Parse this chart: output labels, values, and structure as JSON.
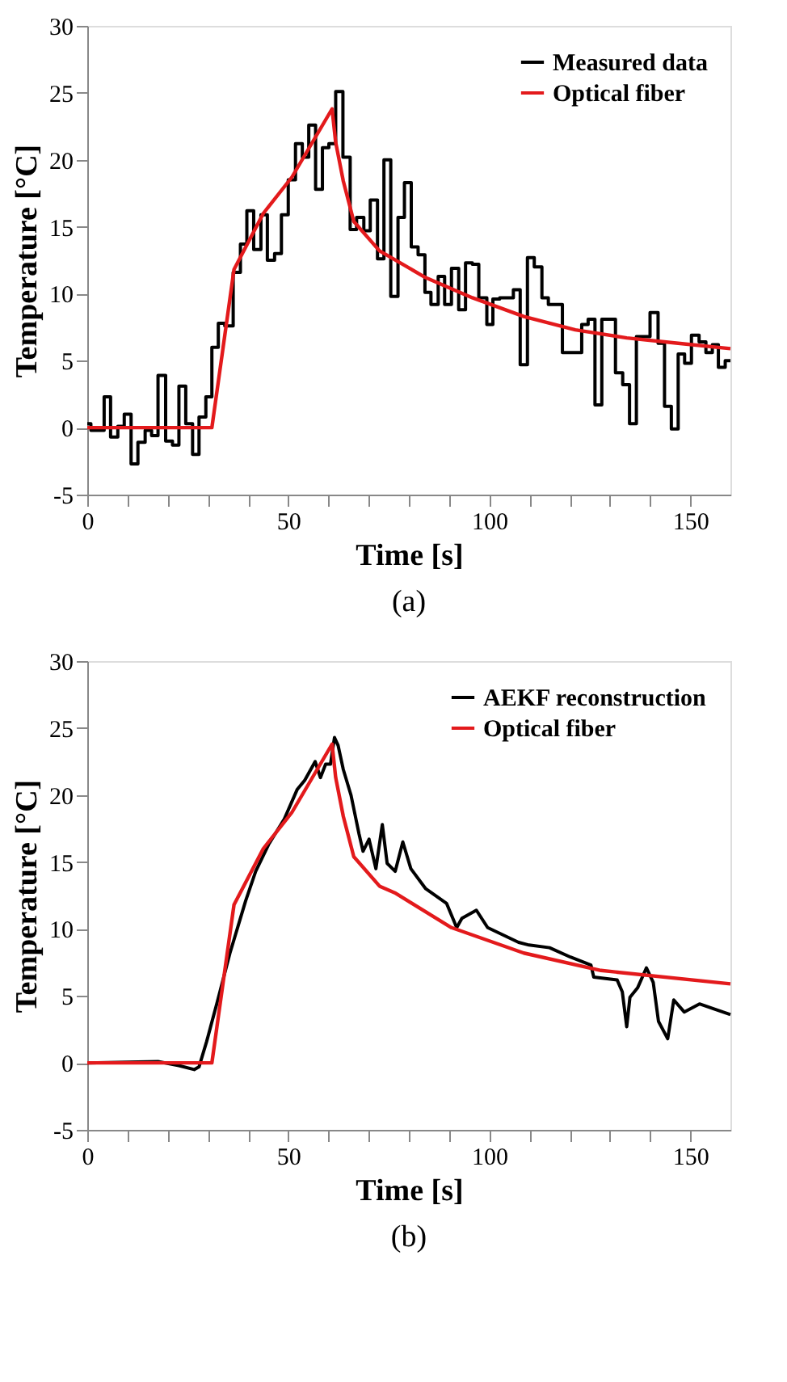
{
  "chart_data": [
    {
      "type": "line",
      "xlabel": "Time [s]",
      "ylabel": "Temperature [°C]",
      "annotations": [
        "(a)"
      ],
      "legend": "top right",
      "grid": false,
      "line_style": "solid",
      "marker": "none",
      "xlim": [
        0,
        160
      ],
      "ylim": [
        -5,
        30
      ],
      "xticks": [
        0,
        {
          "value": 10,
          "label": null
        },
        {
          "value": 20,
          "label": null
        },
        {
          "value": 30,
          "label": null
        },
        {
          "value": 40,
          "label": null
        },
        50,
        {
          "value": 60,
          "label": null
        },
        {
          "value": 70,
          "label": null
        },
        {
          "value": 80,
          "label": null
        },
        {
          "value": 90,
          "label": null
        },
        100,
        {
          "value": 110,
          "label": null
        },
        {
          "value": 120,
          "label": null
        },
        {
          "value": 130,
          "label": null
        },
        {
          "value": 140,
          "label": null
        },
        150
      ],
      "yticks": [
        -5,
        0,
        5,
        10,
        15,
        20,
        25,
        30
      ],
      "series": [
        {
          "name": "Measured data",
          "type": "step",
          "color": "#000000",
          "x": [
            0.0,
            0.9,
            4.2,
            5.8,
            7.6,
            9.2,
            10.9,
            12.6,
            14.4,
            16.0,
            17.6,
            19.5,
            21.2,
            22.8,
            24.5,
            26.2,
            27.8,
            29.5,
            31.0,
            32.6,
            34.2,
            36.3,
            38.1,
            39.7,
            41.4,
            43.2,
            44.8,
            46.6,
            48.3,
            50.0,
            51.8,
            53.5,
            55.1,
            56.8,
            58.5,
            60.1,
            61.8,
            63.6,
            65.4,
            67.0,
            68.8,
            70.4,
            72.2,
            73.8,
            75.5,
            77.3,
            78.9,
            80.6,
            82.3,
            84.0,
            85.5,
            87.3,
            88.9,
            90.6,
            92.4,
            94.1,
            95.8,
            97.4,
            99.4,
            100.9,
            102.6,
            106.0,
            107.7,
            109.5,
            111.2,
            113.1,
            114.7,
            118.2,
            123.0,
            124.6,
            126.3,
            128.0,
            131.4,
            133.2,
            134.9,
            136.6,
            140.0,
            142.0,
            143.6,
            145.3,
            147.0,
            148.6,
            150.3,
            152.2,
            153.9,
            155.5,
            157.0,
            158.7,
            160.0
          ],
          "values": [
            0.3,
            -0.2,
            2.3,
            -0.7,
            0.1,
            1.0,
            -2.7,
            -1.1,
            -0.2,
            -0.6,
            3.9,
            -1.0,
            -1.3,
            3.1,
            0.3,
            -2.0,
            0.8,
            2.3,
            6.0,
            7.8,
            7.6,
            11.6,
            13.7,
            16.2,
            13.3,
            15.9,
            12.5,
            13.0,
            15.9,
            18.5,
            21.2,
            20.2,
            22.6,
            17.8,
            20.9,
            21.2,
            25.1,
            20.2,
            14.8,
            15.7,
            14.7,
            17.0,
            12.6,
            20.0,
            9.8,
            15.7,
            18.3,
            13.5,
            12.9,
            10.1,
            9.2,
            11.3,
            9.2,
            11.9,
            8.8,
            12.3,
            12.2,
            9.7,
            7.7,
            9.6,
            9.7,
            10.3,
            4.7,
            12.7,
            12.0,
            9.7,
            9.2,
            5.6,
            7.7,
            8.1,
            1.7,
            8.1,
            4.1,
            3.2,
            0.3,
            6.8,
            8.6,
            6.3,
            1.6,
            -0.1,
            5.5,
            4.8,
            6.9,
            6.4,
            5.6,
            6.2,
            4.5,
            5.0,
            5.0
          ]
        },
        {
          "name": "Optical fiber",
          "type": "line",
          "color": "#e31a1c",
          "x": [
            0,
            31.0,
            36.5,
            43.8,
            50.9,
            60.9,
            61.8,
            63.7,
            66.3,
            72.7,
            84.2,
            95.8,
            108.6,
            121.4,
            134.2,
            147.0,
            160.0
          ],
          "values": [
            0,
            0,
            11.8,
            16.0,
            18.7,
            23.8,
            21.3,
            18.4,
            15.4,
            13.2,
            11.2,
            9.7,
            8.3,
            7.3,
            6.7,
            6.3,
            5.9
          ]
        }
      ]
    },
    {
      "type": "line",
      "xlabel": "Time [s]",
      "ylabel": "Temperature [°C]",
      "annotations": [
        "(b)"
      ],
      "legend": "top right",
      "grid": false,
      "line_style": "solid",
      "marker": "none",
      "xlim": [
        0,
        160
      ],
      "ylim": [
        -5,
        30
      ],
      "xticks": [
        0,
        {
          "value": 10,
          "label": null
        },
        {
          "value": 20,
          "label": null
        },
        {
          "value": 30,
          "label": null
        },
        {
          "value": 40,
          "label": null
        },
        50,
        {
          "value": 60,
          "label": null
        },
        {
          "value": 70,
          "label": null
        },
        {
          "value": 80,
          "label": null
        },
        {
          "value": 90,
          "label": null
        },
        100,
        {
          "value": 110,
          "label": null
        },
        {
          "value": 120,
          "label": null
        },
        {
          "value": 130,
          "label": null
        },
        {
          "value": 140,
          "label": null
        },
        150
      ],
      "yticks": [
        -5,
        0,
        5,
        10,
        15,
        20,
        25,
        30
      ],
      "series": [
        {
          "name": "AEKF reconstruction",
          "type": "line",
          "color": "#000000",
          "x": [
            0,
            17.6,
            22.8,
            26.6,
            27.8,
            29.7,
            32.3,
            35.5,
            39.4,
            41.9,
            45.1,
            49.0,
            52.2,
            54.1,
            56.7,
            58.0,
            59.3,
            60.5,
            61.5,
            62.4,
            63.7,
            65.6,
            67.6,
            68.6,
            70.1,
            71.8,
            73.4,
            74.6,
            76.6,
            78.5,
            80.5,
            84.2,
            89.4,
            91.9,
            93.2,
            96.8,
            99.6,
            107.3,
            109.9,
            115.0,
            120.2,
            125.3,
            126.0,
            131.8,
            133.1,
            134.2,
            135.0,
            136.9,
            139.1,
            140.8,
            142.1,
            144.4,
            145.9,
            148.5,
            152.3,
            156.2,
            160.0
          ],
          "values": [
            0,
            0.1,
            -0.2,
            -0.5,
            -0.3,
            1.6,
            4.5,
            8.2,
            12.1,
            14.3,
            16.3,
            18.2,
            20.4,
            21.1,
            22.5,
            21.3,
            22.3,
            22.3,
            24.3,
            23.7,
            21.9,
            20.0,
            17.1,
            15.8,
            16.7,
            14.5,
            17.8,
            14.9,
            14.3,
            16.5,
            14.5,
            13.0,
            11.9,
            10.1,
            10.8,
            11.4,
            10.1,
            9.0,
            8.8,
            8.6,
            7.9,
            7.3,
            6.4,
            6.2,
            5.3,
            2.7,
            4.9,
            5.6,
            7.1,
            6.0,
            3.1,
            1.8,
            4.7,
            3.8,
            4.4,
            4.0,
            3.6
          ]
        },
        {
          "name": "Optical fiber",
          "type": "line",
          "color": "#e31a1c",
          "x": [
            0,
            31.0,
            36.5,
            43.8,
            50.9,
            60.9,
            61.8,
            63.7,
            66.3,
            72.7,
            76.5,
            90.6,
            108.6,
            127.8,
            160.0
          ],
          "values": [
            0,
            0,
            11.8,
            16.0,
            18.7,
            23.8,
            21.3,
            18.4,
            15.4,
            13.2,
            12.7,
            10.1,
            8.2,
            6.9,
            5.9
          ]
        }
      ]
    }
  ]
}
